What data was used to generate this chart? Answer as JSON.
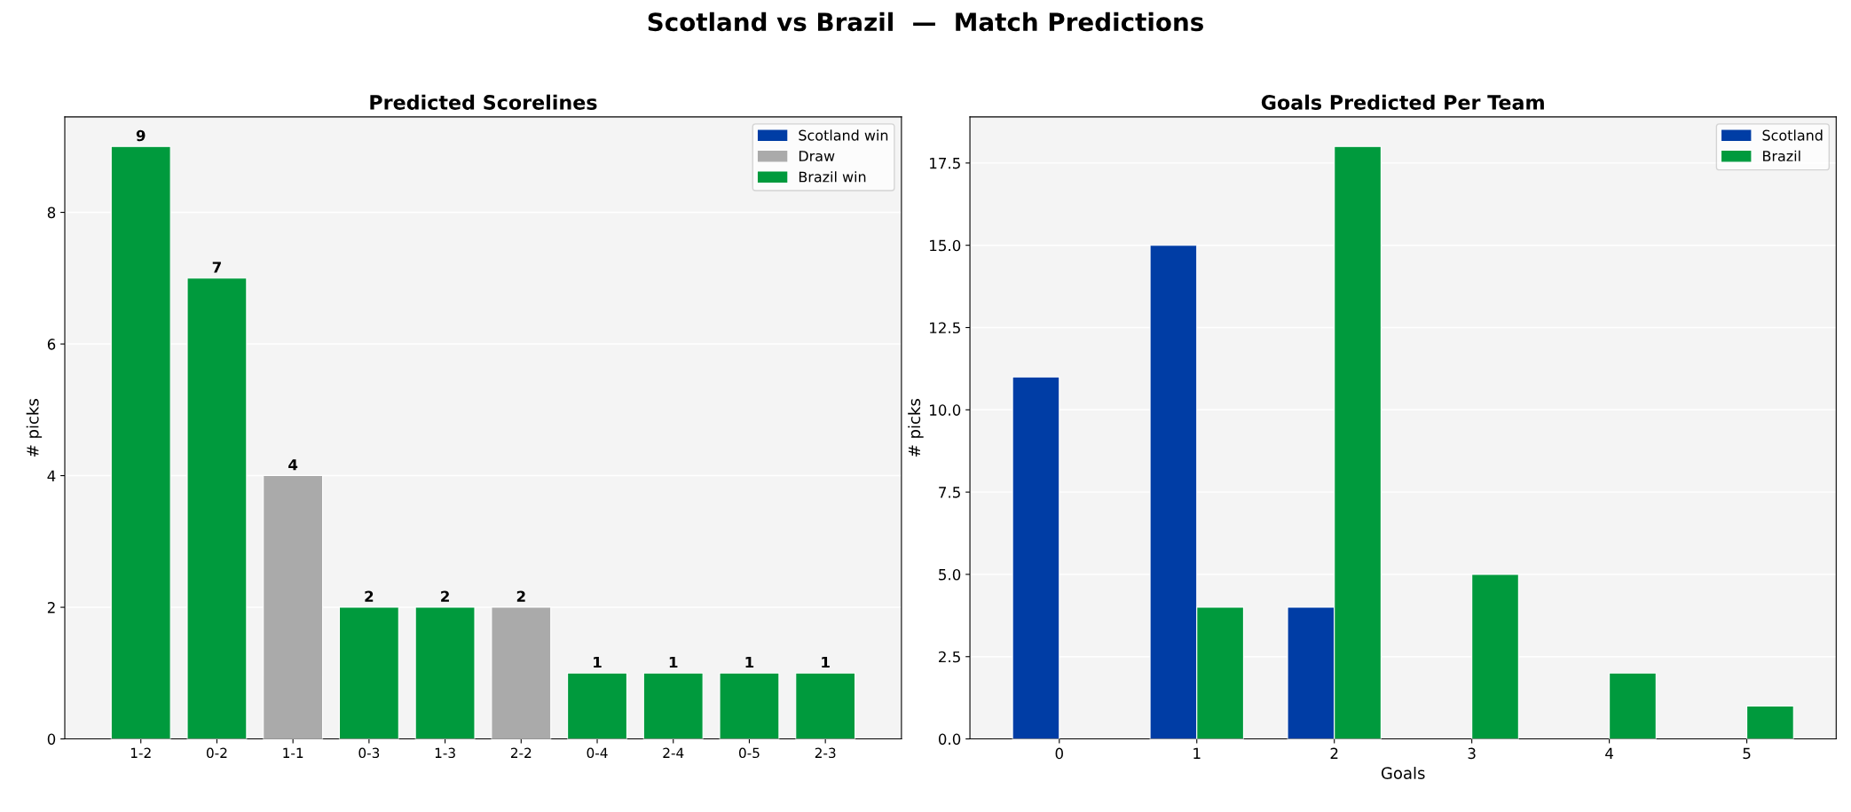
{
  "chart_data": [
    {
      "type": "bar",
      "title": "Predicted Scorelines",
      "ylabel": "# picks",
      "annotations": [
        "Scotland vs Brazil  —  Match Predictions"
      ],
      "categories": [
        "1-2",
        "0-2",
        "1-1",
        "0-3",
        "1-3",
        "2-2",
        "0-4",
        "2-4",
        "0-5",
        "2-3"
      ],
      "series": [
        {
          "name": "Scotland win",
          "color": "#003da5",
          "values": [
            null,
            null,
            null,
            null,
            null,
            null,
            null,
            null,
            null,
            null
          ]
        },
        {
          "name": "Draw",
          "color": "#aaaaaa",
          "values": [
            null,
            null,
            4,
            null,
            null,
            2,
            null,
            null,
            null,
            null
          ]
        },
        {
          "name": "Brazil win",
          "color": "#009a3d",
          "values": [
            9,
            7,
            null,
            2,
            2,
            null,
            1,
            1,
            1,
            1
          ]
        }
      ],
      "ylim": [
        0,
        9.45
      ],
      "yticks": [
        0,
        2,
        4,
        6,
        8
      ],
      "grid": "y",
      "legend": "top right",
      "data_labels": true
    },
    {
      "type": "bar",
      "title": "Goals Predicted Per Team",
      "xlabel": "Goals",
      "ylabel": "# picks",
      "categories": [
        "0",
        "1",
        "2",
        "3",
        "4",
        "5"
      ],
      "series": [
        {
          "name": "Scotland",
          "color": "#003da5",
          "values": [
            11,
            15,
            4,
            null,
            null,
            null
          ]
        },
        {
          "name": "Brazil",
          "color": "#009a3d",
          "values": [
            null,
            4,
            18,
            5,
            2,
            1
          ]
        }
      ],
      "ylim": [
        0,
        18.9
      ],
      "yticks": [
        {
          "value": 0,
          "label": "0.0"
        },
        {
          "value": 2.5,
          "label": "2.5"
        },
        {
          "value": 5,
          "label": "5.0"
        },
        {
          "value": 7.5,
          "label": "7.5"
        },
        {
          "value": 10,
          "label": "10.0"
        },
        {
          "value": 12.5,
          "label": "12.5"
        },
        {
          "value": 15,
          "label": "15.0"
        },
        {
          "value": 17.5,
          "label": "17.5"
        }
      ],
      "grid": "y",
      "legend": "top right"
    }
  ]
}
